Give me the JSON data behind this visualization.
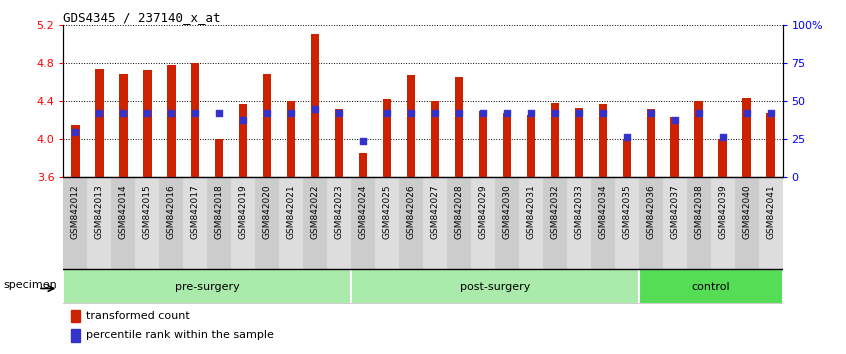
{
  "title": "GDS4345 / 237140_x_at",
  "samples": [
    "GSM842012",
    "GSM842013",
    "GSM842014",
    "GSM842015",
    "GSM842016",
    "GSM842017",
    "GSM842018",
    "GSM842019",
    "GSM842020",
    "GSM842021",
    "GSM842022",
    "GSM842023",
    "GSM842024",
    "GSM842025",
    "GSM842026",
    "GSM842027",
    "GSM842028",
    "GSM842029",
    "GSM842030",
    "GSM842031",
    "GSM842032",
    "GSM842033",
    "GSM842034",
    "GSM842035",
    "GSM842036",
    "GSM842037",
    "GSM842038",
    "GSM842039",
    "GSM842040",
    "GSM842041"
  ],
  "bar_values": [
    4.15,
    4.73,
    4.68,
    4.72,
    4.78,
    4.8,
    4.0,
    4.37,
    4.68,
    4.4,
    5.1,
    4.32,
    3.85,
    4.42,
    4.67,
    4.4,
    4.65,
    4.29,
    4.27,
    4.25,
    4.38,
    4.33,
    4.37,
    4.0,
    4.31,
    4.23,
    4.4,
    4.0,
    4.43,
    4.27
  ],
  "percentile_values": [
    4.07,
    4.27,
    4.27,
    4.27,
    4.27,
    4.27,
    4.27,
    4.2,
    4.27,
    4.27,
    4.32,
    4.27,
    3.98,
    4.27,
    4.27,
    4.27,
    4.27,
    4.27,
    4.27,
    4.27,
    4.27,
    4.27,
    4.27,
    4.02,
    4.27,
    4.2,
    4.27,
    4.02,
    4.27,
    4.27
  ],
  "ymin": 3.6,
  "ymax": 5.2,
  "yticks": [
    3.6,
    4.0,
    4.4,
    4.8,
    5.2
  ],
  "right_yticks": [
    0,
    25,
    50,
    75,
    100
  ],
  "right_yticklabels": [
    "0",
    "25",
    "50",
    "75",
    "100%"
  ],
  "bar_color": "#CC2200",
  "dot_color": "#3333CC",
  "bar_bottom": 3.6,
  "group_boundaries": [
    {
      "name": "pre-surgery",
      "start": 0,
      "end": 12,
      "color": "#AAEAAA"
    },
    {
      "name": "post-surgery",
      "start": 12,
      "end": 24,
      "color": "#AAEAAA"
    },
    {
      "name": "control",
      "start": 24,
      "end": 30,
      "color": "#55DD55"
    }
  ],
  "legend_items": [
    {
      "label": "transformed count",
      "color": "#CC2200"
    },
    {
      "label": "percentile rank within the sample",
      "color": "#3333CC"
    }
  ],
  "bar_width": 0.35
}
